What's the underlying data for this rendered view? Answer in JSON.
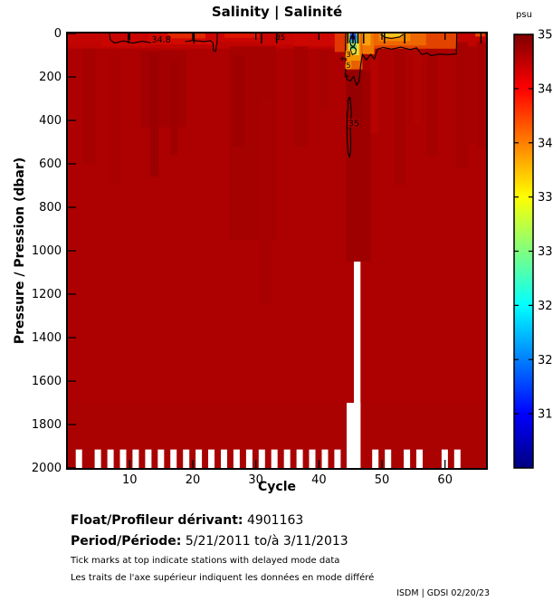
{
  "footer": {
    "float_label": "Float/Profileur dérivant:",
    "float_value": "4901163",
    "period_label": "Period/Période:",
    "period_value": "5/21/2011  to/à  3/11/2013",
    "note_en": "Tick marks at top indicate stations with delayed mode data",
    "note_fr": "Les traits de l'axe supérieur indiquent les données en mode différé",
    "credit": "ISDM | GDSI  02/20/23"
  },
  "chart_data": {
    "type": "heatmap",
    "title": "Salinity | Salinité",
    "xlabel": "Cycle",
    "ylabel": "Pressure / Pression (dbar)",
    "summary": "Salinity section vs cycle (1-66) and pressure (0-2000 dbar) for Argo float 4901163; field mostly 34.7-35 psu (dark red), fresh low-salinity surface anomaly (31-34 psu) near cycles 44-48, warm orange surface band (~34-34.5) cycles 49-62, contours labelled 34.8 and 35, missing data shown white at depth for cycles 45-46 and at 2000 dbar for alternating cycles",
    "x_range": [
      0.2,
      66.5
    ],
    "y_range": [
      0,
      2000
    ],
    "y_inverted": true,
    "x_ticks": [
      10,
      20,
      30,
      40,
      50,
      60
    ],
    "y_ticks": [
      0,
      200,
      400,
      600,
      800,
      1000,
      1200,
      1400,
      1600,
      1800,
      2000
    ],
    "grid": false,
    "base_color": "#AD0101",
    "colorbar": {
      "label": "psu",
      "min": 31,
      "max": 35,
      "ticks": [
        35,
        34.5,
        34,
        33.5,
        33,
        32.5,
        32,
        31.5
      ],
      "colormap": "jet",
      "gradient_stops_top_to_bottom": [
        {
          "offset": 0,
          "color": "#7F0000"
        },
        {
          "offset": 12.5,
          "color": "#FF0000"
        },
        {
          "offset": 37.5,
          "color": "#FFFF00"
        },
        {
          "offset": 62.5,
          "color": "#00FFFF"
        },
        {
          "offset": 87.5,
          "color": "#0000FF"
        },
        {
          "offset": 100,
          "color": "#00007F"
        }
      ]
    },
    "regions": [
      {
        "x": [
          0.2,
          66.5
        ],
        "y": [
          0,
          70
        ],
        "color": "#BE0300"
      },
      {
        "x": [
          0.2,
          5.5
        ],
        "y": [
          0,
          45
        ],
        "color": "#C40400"
      },
      {
        "x": [
          5.5,
          13
        ],
        "y": [
          0,
          60
        ],
        "color": "#C80500"
      },
      {
        "x": [
          13,
          23.5
        ],
        "y": [
          0,
          50
        ],
        "color": "#D20900"
      },
      {
        "x": [
          16,
          22.5
        ],
        "y": [
          0,
          22
        ],
        "color": "#E22800"
      },
      {
        "x": [
          22,
          31
        ],
        "y": [
          0,
          38
        ],
        "color": "#CA0500"
      },
      {
        "x": [
          25,
          30.5
        ],
        "y": [
          0,
          20
        ],
        "color": "#DC1600"
      },
      {
        "x": [
          31,
          36
        ],
        "y": [
          0,
          52
        ],
        "color": "#C80500"
      },
      {
        "x": [
          36,
          42.5
        ],
        "y": [
          0,
          58
        ],
        "color": "#CC0600"
      },
      {
        "x": [
          42.5,
          44.3
        ],
        "y": [
          0,
          85
        ],
        "color": "#E03800"
      },
      {
        "x": [
          11.8,
          19
        ],
        "y": [
          80,
          430
        ],
        "color": "#A20001"
      },
      {
        "x": [
          13.2,
          14.6
        ],
        "y": [
          90,
          660
        ],
        "color": "#9C0000"
      },
      {
        "x": [
          16.5,
          17.6
        ],
        "y": [
          120,
          560
        ],
        "color": "#9E0000"
      },
      {
        "x": [
          25.8,
          33.2
        ],
        "y": [
          60,
          950
        ],
        "color": "#A50101"
      },
      {
        "x": [
          26.3,
          28.2
        ],
        "y": [
          100,
          520
        ],
        "color": "#9E0000"
      },
      {
        "x": [
          30.5,
          32.5
        ],
        "y": [
          300,
          1250
        ],
        "color": "#A80101"
      },
      {
        "x": [
          2.5,
          4.6
        ],
        "y": [
          70,
          600
        ],
        "color": "#A60101"
      },
      {
        "x": [
          7,
          8.2
        ],
        "y": [
          100,
          700
        ],
        "color": "#A80101"
      },
      {
        "x": [
          36,
          38.2
        ],
        "y": [
          60,
          520
        ],
        "color": "#A60101"
      },
      {
        "x": [
          40,
          41.5
        ],
        "y": [
          80,
          350
        ],
        "color": "#A80101"
      },
      {
        "x": [
          44.3,
          48.2
        ],
        "y": [
          170,
          1050
        ],
        "color": "#9E0000"
      },
      {
        "x": [
          44.3,
          46.9
        ],
        "y": [
          170,
          430
        ],
        "color": "#960000"
      },
      {
        "x": [
          48.2,
          49.5
        ],
        "y": [
          70,
          460
        ],
        "color": "#B40300"
      },
      {
        "x": [
          52,
          53.8
        ],
        "y": [
          60,
          700
        ],
        "color": "#A60101"
      },
      {
        "x": [
          55,
          56.3
        ],
        "y": [
          70,
          420
        ],
        "color": "#B00200"
      },
      {
        "x": [
          57,
          58.8
        ],
        "y": [
          60,
          560
        ],
        "color": "#A60101"
      },
      {
        "x": [
          61.9,
          63.6
        ],
        "y": [
          40,
          620
        ],
        "color": "#A60101"
      },
      {
        "x": [
          63,
          64.8
        ],
        "y": [
          60,
          500
        ],
        "color": "#A80101"
      },
      {
        "x": [
          65,
          66.5
        ],
        "y": [
          40,
          520
        ],
        "color": "#A60101"
      },
      {
        "x": [
          0.2,
          66.5
        ],
        "y": [
          1700,
          2000
        ],
        "color": "#AA0101"
      },
      {
        "x": [
          44.3,
          46.9
        ],
        "y": [
          0,
          165
        ],
        "color": "#E86000"
      },
      {
        "x": [
          44.5,
          46.6
        ],
        "y": [
          0,
          125
        ],
        "color": "#F49600"
      },
      {
        "x": [
          44.7,
          46.35
        ],
        "y": [
          0,
          100
        ],
        "color": "#E8DC40"
      },
      {
        "x": [
          44.85,
          46.1
        ],
        "y": [
          5,
          46
        ],
        "color": "#38B8B8"
      },
      {
        "x": [
          44.95,
          45.9
        ],
        "y": [
          0,
          28
        ],
        "color": "#2A50D8"
      },
      {
        "x": [
          45.05,
          45.75
        ],
        "y": [
          10,
          24
        ],
        "color": "#001A9A"
      },
      {
        "x": [
          44.9,
          45.9
        ],
        "y": [
          50,
          72
        ],
        "color": "#50C868"
      },
      {
        "x": [
          46.9,
          48.8
        ],
        "y": [
          0,
          95
        ],
        "color": "#F07800"
      },
      {
        "x": [
          46.9,
          48.2
        ],
        "y": [
          0,
          55
        ],
        "color": "#F8A010"
      },
      {
        "x": [
          48.8,
          61.9
        ],
        "y": [
          0,
          70
        ],
        "color": "#E24400"
      },
      {
        "x": [
          48.8,
          57
        ],
        "y": [
          0,
          55
        ],
        "color": "#EE6600"
      },
      {
        "x": [
          49.5,
          54.5
        ],
        "y": [
          0,
          35
        ],
        "color": "#F68600"
      },
      {
        "x": [
          49.8,
          53.2
        ],
        "y": [
          0,
          16
        ],
        "color": "#F8C420"
      },
      {
        "x": [
          61.9,
          66.5
        ],
        "y": [
          0,
          35
        ],
        "color": "#C20300"
      },
      {
        "x": [
          64.8,
          66.3
        ],
        "y": [
          0,
          14
        ],
        "color": "#E04800"
      }
    ],
    "missing_columns": [
      {
        "x": [
          45.55,
          46.6
        ],
        "y": [
          1050,
          2000
        ]
      },
      {
        "x": [
          44.4,
          46.6
        ],
        "y": [
          1700,
          2000
        ]
      }
    ],
    "missing_bottom_cycles": [
      2,
      5,
      7,
      9,
      11,
      13,
      15,
      17,
      19,
      21,
      23,
      25,
      27,
      29,
      31,
      33,
      35,
      37,
      39,
      41,
      43,
      49,
      51,
      54,
      56,
      60,
      62
    ],
    "missing_bottom_depth_range": [
      1915,
      2000
    ],
    "contours": [
      {
        "value": 34.8,
        "closed": false,
        "points": [
          [
            6.8,
            0
          ],
          [
            6.9,
            28
          ],
          [
            7.6,
            44
          ],
          [
            9.0,
            34
          ],
          [
            10.5,
            44
          ],
          [
            12.0,
            36
          ],
          [
            13.6,
            44
          ],
          [
            14.8,
            38
          ]
        ]
      },
      {
        "value": 34.8,
        "closed": false,
        "points": [
          [
            18.8,
            38
          ],
          [
            20.0,
            32
          ],
          [
            21.8,
            37
          ],
          [
            22.8,
            33
          ],
          [
            23.2,
            42
          ],
          [
            23.3,
            78
          ],
          [
            23.65,
            82
          ],
          [
            23.85,
            40
          ],
          [
            23.9,
            0
          ]
        ]
      },
      {
        "value": 35,
        "closed": true,
        "points": [
          [
            44.8,
            295
          ],
          [
            44.6,
            312
          ],
          [
            44.66,
            342
          ],
          [
            44.5,
            365
          ],
          [
            44.45,
            435
          ],
          [
            44.5,
            505
          ],
          [
            44.65,
            548
          ],
          [
            44.85,
            568
          ],
          [
            45.0,
            552
          ],
          [
            45.06,
            505
          ],
          [
            45.0,
            452
          ],
          [
            45.06,
            402
          ],
          [
            45.16,
            362
          ],
          [
            45.06,
            332
          ],
          [
            45.0,
            312
          ],
          [
            44.95,
            295
          ]
        ]
      },
      {
        "value": 34.8,
        "closed": false,
        "points": [
          [
            44.25,
            0
          ],
          [
            44.2,
            80
          ],
          [
            44.3,
            150
          ],
          [
            44.15,
            188
          ],
          [
            44.5,
            212
          ],
          [
            45.0,
            218
          ],
          [
            45.5,
            198
          ],
          [
            46.0,
            238
          ],
          [
            46.4,
            218
          ],
          [
            46.6,
            152
          ],
          [
            46.9,
            96
          ],
          [
            47.5,
            122
          ],
          [
            48.2,
            96
          ],
          [
            48.8,
            118
          ],
          [
            49.3,
            72
          ],
          [
            50.2,
            64
          ],
          [
            51.5,
            72
          ],
          [
            53.0,
            63
          ],
          [
            54.5,
            74
          ],
          [
            55.5,
            66
          ],
          [
            56.3,
            97
          ],
          [
            57.2,
            90
          ],
          [
            57.8,
            102
          ],
          [
            59.0,
            95
          ],
          [
            60.5,
            97
          ],
          [
            61.8,
            94
          ],
          [
            61.85,
            0
          ]
        ]
      },
      {
        "value": 33,
        "closed": true,
        "points": [
          [
            45.05,
            16
          ],
          [
            44.9,
            36
          ],
          [
            45.1,
            56
          ],
          [
            45.5,
            62
          ],
          [
            45.8,
            42
          ],
          [
            45.6,
            16
          ],
          [
            45.3,
            9
          ]
        ]
      },
      {
        "value": 34,
        "closed": true,
        "points": [
          [
            45.0,
            76
          ],
          [
            45.3,
            97
          ],
          [
            45.8,
            92
          ],
          [
            45.9,
            72
          ],
          [
            45.5,
            62
          ],
          [
            45.1,
            66
          ]
        ]
      },
      {
        "value": 34.5,
        "closed": false,
        "points": [
          [
            49.8,
            4
          ],
          [
            50.5,
            18
          ],
          [
            51.5,
            23
          ],
          [
            52.8,
            16
          ],
          [
            53.4,
            4
          ]
        ]
      },
      {
        "value": 35,
        "closed": false,
        "points": [
          [
            33.1,
            0
          ],
          [
            33.3,
            14
          ],
          [
            33.8,
            18
          ],
          [
            34.2,
            10
          ],
          [
            34.3,
            0
          ]
        ]
      }
    ],
    "contour_labels": [
      {
        "text": "34.8",
        "x": 15.0,
        "y": 30,
        "halo": "#D20900",
        "size": 9.5
      },
      {
        "text": "35",
        "x": 45.55,
        "y": 415,
        "halo": "#AD0101",
        "size": 10
      },
      {
        "text": "35",
        "x": 33.9,
        "y": 16,
        "halo": "#BE0300",
        "size": 8
      },
      {
        "text": "3",
        "x": 44.7,
        "y": 95,
        "halo": "#F49600",
        "size": 8
      },
      {
        "text": "5",
        "x": 44.7,
        "y": 145,
        "halo": "#F49600",
        "size": 8
      }
    ],
    "contour_marks": [
      {
        "x": 44.78,
        "y": 428
      },
      {
        "x": 33.35,
        "y": 22
      },
      {
        "x": 43.7,
        "y": 115
      },
      {
        "x": 44.4,
        "y": 195
      }
    ],
    "delayed_mode_tick_cycles": [
      9.8,
      20.2,
      30.9,
      33.3,
      44.6,
      45.4,
      46.2,
      47.1,
      50.4,
      53.6,
      65.7
    ]
  }
}
